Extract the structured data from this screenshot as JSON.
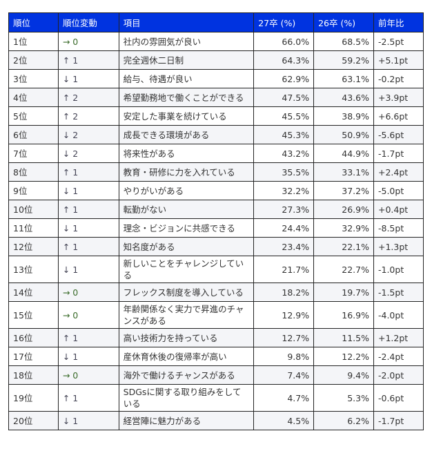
{
  "header": [
    "順位",
    "順位変動",
    "項目",
    "27卒 (%)",
    "26卒 (%)",
    "前年比"
  ],
  "rows": [
    {
      "rank": "1位",
      "change": "→ 0",
      "item": "社内の雰囲気が良い",
      "y27": "66.0%",
      "y26": "68.5%",
      "diff": "-2.5pt"
    },
    {
      "rank": "2位",
      "change": "↑ 1",
      "item": "完全週休二日制",
      "y27": "64.3%",
      "y26": "59.2%",
      "diff": "+5.1pt"
    },
    {
      "rank": "3位",
      "change": "↓ 1",
      "item": "給与、待遇が良い",
      "y27": "62.9%",
      "y26": "63.1%",
      "diff": "-0.2pt"
    },
    {
      "rank": "4位",
      "change": "↑ 2",
      "item": "希望勤務地で働くことができる",
      "y27": "47.5%",
      "y26": "43.6%",
      "diff": "+3.9pt"
    },
    {
      "rank": "5位",
      "change": "↑ 2",
      "item": "安定した事業を続けている",
      "y27": "45.5%",
      "y26": "38.9%",
      "diff": "+6.6pt"
    },
    {
      "rank": "6位",
      "change": "↓ 2",
      "item": "成長できる環境がある",
      "y27": "45.3%",
      "y26": "50.9%",
      "diff": "-5.6pt"
    },
    {
      "rank": "7位",
      "change": "↓ 2",
      "item": "将来性がある",
      "y27": "43.2%",
      "y26": "44.9%",
      "diff": "-1.7pt"
    },
    {
      "rank": "8位",
      "change": "↑ 1",
      "item": "教育・研修に力を入れている",
      "y27": "35.5%",
      "y26": "33.1%",
      "diff": "+2.4pt"
    },
    {
      "rank": "9位",
      "change": "↓ 1",
      "item": "やりがいがある",
      "y27": "32.2%",
      "y26": "37.2%",
      "diff": "-5.0pt"
    },
    {
      "rank": "10位",
      "change": "↑ 1",
      "item": "転勤がない",
      "y27": "27.3%",
      "y26": "26.9%",
      "diff": "+0.4pt"
    },
    {
      "rank": "11位",
      "change": "↓ 1",
      "item": "理念・ビジョンに共感できる",
      "y27": "24.4%",
      "y26": "32.9%",
      "diff": "-8.5pt"
    },
    {
      "rank": "12位",
      "change": "↑ 1",
      "item": "知名度がある",
      "y27": "23.4%",
      "y26": "22.1%",
      "diff": "+1.3pt"
    },
    {
      "rank": "13位",
      "change": "↓ 1",
      "item": "新しいことをチャレンジしている",
      "y27": "21.7%",
      "y26": "22.7%",
      "diff": "-1.0pt"
    },
    {
      "rank": "14位",
      "change": "→ 0",
      "item": "フレックス制度を導入している",
      "y27": "18.2%",
      "y26": "19.7%",
      "diff": "-1.5pt"
    },
    {
      "rank": "15位",
      "change": "→ 0",
      "item": "年齢関係なく実力で昇進のチャンスがある",
      "y27": "12.9%",
      "y26": "16.9%",
      "diff": "-4.0pt"
    },
    {
      "rank": "16位",
      "change": "↑ 1",
      "item": "高い技術力を持っている",
      "y27": "12.7%",
      "y26": "11.5%",
      "diff": "+1.2pt"
    },
    {
      "rank": "17位",
      "change": "↓ 1",
      "item": "産休育休後の復帰率が高い",
      "y27": "9.8%",
      "y26": "12.2%",
      "diff": "-2.4pt"
    },
    {
      "rank": "18位",
      "change": "→ 0",
      "item": "海外で働けるチャンスがある",
      "y27": "7.4%",
      "y26": "9.4%",
      "diff": "-2.0pt"
    },
    {
      "rank": "19位",
      "change": "↑ 1",
      "item": "SDGsに関する取り組みをしている",
      "y27": "4.7%",
      "y26": "5.3%",
      "diff": "-0.6pt"
    },
    {
      "rank": "20位",
      "change": "↓ 1",
      "item": "経営陣に魅力がある",
      "y27": "4.5%",
      "y26": "6.2%",
      "diff": "-1.7pt"
    }
  ],
  "colors": {
    "header_bg": "#0033e0",
    "header_text": "#ffffff",
    "same_arrow": "#3a6b2a"
  }
}
